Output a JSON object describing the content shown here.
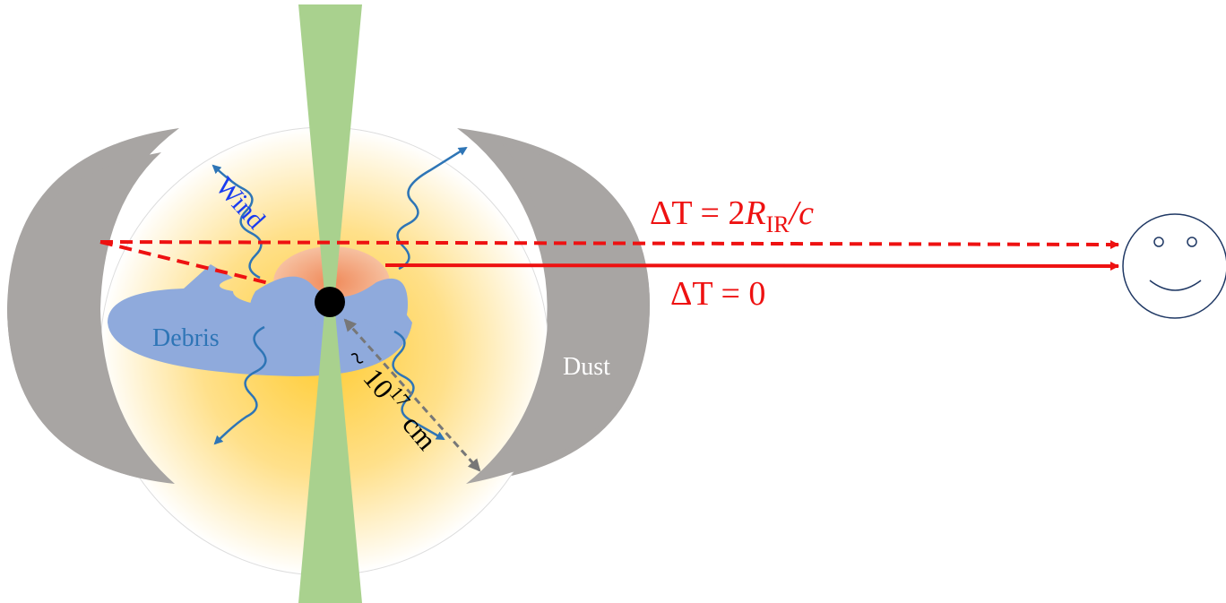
{
  "labels": {
    "wind": "Wind",
    "debris": "Debris",
    "dust": "Dust"
  },
  "delay_far": {
    "prefix": "ΔT = 2",
    "variable": "R",
    "subscript": "IR",
    "suffix": "/c"
  },
  "delay_near": {
    "text": "ΔT = 0"
  },
  "scale": {
    "tilde": "~",
    "base": "10",
    "exponent": "17",
    "unit": "cm"
  }
}
